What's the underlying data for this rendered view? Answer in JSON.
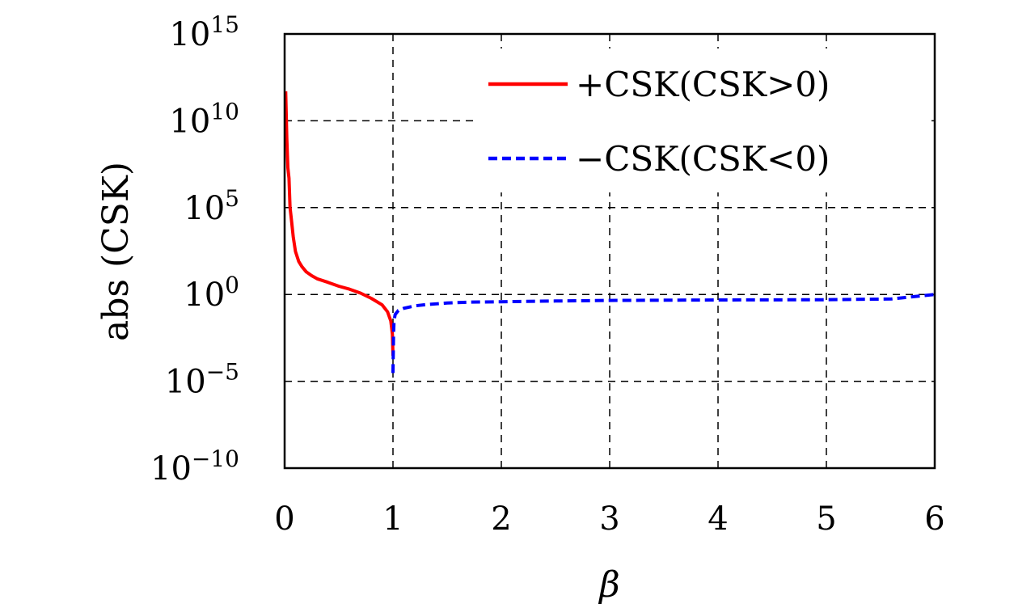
{
  "chart_data": {
    "type": "line",
    "xlabel": "β",
    "ylabel": "abs (CSK)",
    "xlim": [
      0,
      6
    ],
    "ylim": [
      1e-10,
      1000000000000000.0
    ],
    "yscale": "log",
    "grid": true,
    "legend_placement": "top-right",
    "x_ticks": [
      "0",
      "1",
      "2",
      "3",
      "4",
      "5",
      "6"
    ],
    "y_ticks": [
      {
        "base": "10",
        "exp": "15"
      },
      {
        "base": "10",
        "exp": "10"
      },
      {
        "base": "10",
        "exp": "5"
      },
      {
        "base": "10",
        "exp": "0"
      },
      {
        "base": "10",
        "exp": "−5"
      },
      {
        "base": "10",
        "exp": "−10"
      }
    ],
    "series": [
      {
        "name": "+CSK(CSK>0)",
        "color": "#ff0000",
        "style": "solid",
        "x": [
          0.01,
          0.02,
          0.03,
          0.04,
          0.05,
          0.06,
          0.08,
          0.1,
          0.13,
          0.16,
          0.2,
          0.25,
          0.3,
          0.4,
          0.5,
          0.6,
          0.7,
          0.8,
          0.9,
          0.95,
          0.98,
          0.995,
          1.0
        ],
        "y": [
          500000000000.0,
          1000000000.0,
          20000000.0,
          5000000.0,
          100000.0,
          30000.0,
          2000.0,
          300,
          80,
          40,
          20,
          12,
          8,
          5,
          3,
          2,
          1.2,
          0.6,
          0.25,
          0.1,
          0.03,
          0.005,
          0.0003
        ]
      },
      {
        "name": "−CSK(CSK<0)",
        "color": "#0000ff",
        "style": "dashed",
        "x": [
          1.0,
          1.005,
          1.01,
          1.02,
          1.05,
          1.1,
          1.2,
          1.3,
          1.5,
          1.7,
          2.0,
          2.5,
          3.0,
          4.0,
          5.0,
          5.6,
          6.0
        ],
        "y": [
          3e-05,
          0.005,
          0.03,
          0.07,
          0.12,
          0.16,
          0.22,
          0.26,
          0.32,
          0.36,
          0.38,
          0.42,
          0.45,
          0.48,
          0.5,
          0.55,
          1.0
        ]
      }
    ]
  }
}
